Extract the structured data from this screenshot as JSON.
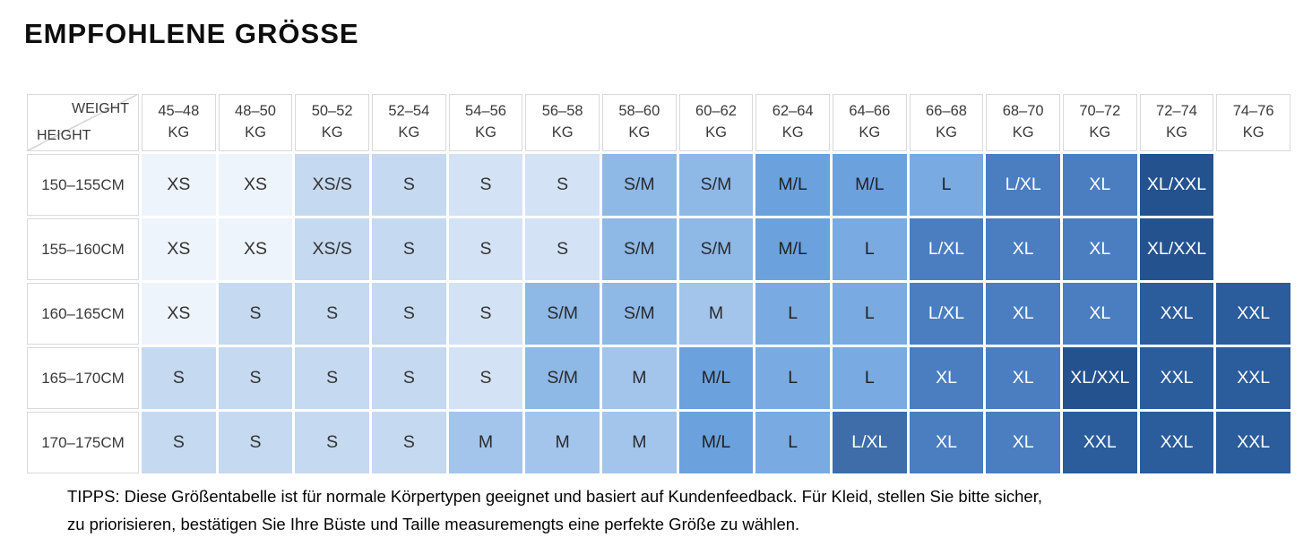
{
  "page": {
    "title": "EMPFOHLENE GRÖSSE",
    "tips": [
      "TIPPS: Diese Größentabelle ist für normale Körpertypen geeignet und basiert auf Kundenfeedback. Für Kleid, stellen Sie bitte sicher,",
      "zu priorisieren, bestätigen Sie Ihre Büste und Taille measuremengts eine perfekte Größe zu wählen."
    ]
  },
  "palette": {
    "empty": {
      "bg": "#ffffff",
      "fg": "#333333"
    },
    "xs": {
      "bg": "#eef4fb",
      "fg": "#333333"
    },
    "s1": {
      "bg": "#c5d9f0",
      "fg": "#333333"
    },
    "s2": {
      "bg": "#d4e2f5",
      "fg": "#333333"
    },
    "sm": {
      "bg": "#8eb8e6",
      "fg": "#2b2b2b"
    },
    "m": {
      "bg": "#a3c4eb",
      "fg": "#2b2b2b"
    },
    "ml": {
      "bg": "#6ba1dd",
      "fg": "#222222"
    },
    "l": {
      "bg": "#79aae1",
      "fg": "#222222"
    },
    "steel": {
      "bg": "#4a7ec1",
      "fg": "#ffffff"
    },
    "steel2": {
      "bg": "#3e6da9",
      "fg": "#ffffff"
    },
    "navy1": {
      "bg": "#24528f",
      "fg": "#ffffff"
    },
    "navy2": {
      "bg": "#2b5c9b",
      "fg": "#ffffff"
    }
  },
  "table": {
    "corner": {
      "top_label": "WEIGHT",
      "bottom_label": "HEIGHT"
    },
    "weight_columns": [
      {
        "range": "45–48",
        "unit": "KG"
      },
      {
        "range": "48–50",
        "unit": "KG"
      },
      {
        "range": "50–52",
        "unit": "KG"
      },
      {
        "range": "52–54",
        "unit": "KG"
      },
      {
        "range": "54–56",
        "unit": "KG"
      },
      {
        "range": "56–58",
        "unit": "KG"
      },
      {
        "range": "58–60",
        "unit": "KG"
      },
      {
        "range": "60–62",
        "unit": "KG"
      },
      {
        "range": "62–64",
        "unit": "KG"
      },
      {
        "range": "64–66",
        "unit": "KG"
      },
      {
        "range": "66–68",
        "unit": "KG"
      },
      {
        "range": "68–70",
        "unit": "KG"
      },
      {
        "range": "70–72",
        "unit": "KG"
      },
      {
        "range": "72–74",
        "unit": "KG"
      },
      {
        "range": "74–76",
        "unit": "KG"
      }
    ],
    "rows": [
      {
        "height": "150–155CM",
        "cells": [
          {
            "label": "XS",
            "color": "xs"
          },
          {
            "label": "XS",
            "color": "xs"
          },
          {
            "label": "XS/S",
            "color": "s1"
          },
          {
            "label": "S",
            "color": "s1"
          },
          {
            "label": "S",
            "color": "s2"
          },
          {
            "label": "S",
            "color": "s2"
          },
          {
            "label": "S/M",
            "color": "sm"
          },
          {
            "label": "S/M",
            "color": "sm"
          },
          {
            "label": "M/L",
            "color": "ml"
          },
          {
            "label": "M/L",
            "color": "ml"
          },
          {
            "label": "L",
            "color": "l"
          },
          {
            "label": "L/XL",
            "color": "steel"
          },
          {
            "label": "XL",
            "color": "steel"
          },
          {
            "label": "XL/XXL",
            "color": "navy1"
          },
          {
            "label": "",
            "color": "empty"
          }
        ]
      },
      {
        "height": "155–160CM",
        "cells": [
          {
            "label": "XS",
            "color": "xs"
          },
          {
            "label": "XS",
            "color": "xs"
          },
          {
            "label": "XS/S",
            "color": "s1"
          },
          {
            "label": "S",
            "color": "s1"
          },
          {
            "label": "S",
            "color": "s2"
          },
          {
            "label": "S",
            "color": "s2"
          },
          {
            "label": "S/M",
            "color": "sm"
          },
          {
            "label": "S/M",
            "color": "sm"
          },
          {
            "label": "M/L",
            "color": "ml"
          },
          {
            "label": "L",
            "color": "l"
          },
          {
            "label": "L/XL",
            "color": "steel"
          },
          {
            "label": "XL",
            "color": "steel"
          },
          {
            "label": "XL",
            "color": "steel"
          },
          {
            "label": "XL/XXL",
            "color": "navy1"
          },
          {
            "label": "",
            "color": "empty"
          }
        ]
      },
      {
        "height": "160–165CM",
        "cells": [
          {
            "label": "XS",
            "color": "xs"
          },
          {
            "label": "S",
            "color": "s1"
          },
          {
            "label": "S",
            "color": "s1"
          },
          {
            "label": "S",
            "color": "s1"
          },
          {
            "label": "S",
            "color": "s2"
          },
          {
            "label": "S/M",
            "color": "sm"
          },
          {
            "label": "S/M",
            "color": "sm"
          },
          {
            "label": "M",
            "color": "m"
          },
          {
            "label": "L",
            "color": "l"
          },
          {
            "label": "L",
            "color": "l"
          },
          {
            "label": "L/XL",
            "color": "steel"
          },
          {
            "label": "XL",
            "color": "steel"
          },
          {
            "label": "XL",
            "color": "steel"
          },
          {
            "label": "XXL",
            "color": "navy2"
          },
          {
            "label": "XXL",
            "color": "navy2"
          }
        ]
      },
      {
        "height": "165–170CM",
        "cells": [
          {
            "label": "S",
            "color": "s1"
          },
          {
            "label": "S",
            "color": "s1"
          },
          {
            "label": "S",
            "color": "s1"
          },
          {
            "label": "S",
            "color": "s1"
          },
          {
            "label": "S",
            "color": "s2"
          },
          {
            "label": "S/M",
            "color": "sm"
          },
          {
            "label": "M",
            "color": "m"
          },
          {
            "label": "M/L",
            "color": "ml"
          },
          {
            "label": "L",
            "color": "l"
          },
          {
            "label": "L",
            "color": "l"
          },
          {
            "label": "XL",
            "color": "steel"
          },
          {
            "label": "XL",
            "color": "steel"
          },
          {
            "label": "XL/XXL",
            "color": "navy1"
          },
          {
            "label": "XXL",
            "color": "navy2"
          },
          {
            "label": "XXL",
            "color": "navy2"
          }
        ]
      },
      {
        "height": "170–175CM",
        "cells": [
          {
            "label": "S",
            "color": "s1"
          },
          {
            "label": "S",
            "color": "s1"
          },
          {
            "label": "S",
            "color": "s1"
          },
          {
            "label": "S",
            "color": "s1"
          },
          {
            "label": "M",
            "color": "m"
          },
          {
            "label": "M",
            "color": "m"
          },
          {
            "label": "M",
            "color": "m"
          },
          {
            "label": "M/L",
            "color": "ml"
          },
          {
            "label": "L",
            "color": "l"
          },
          {
            "label": "L/XL",
            "color": "steel2"
          },
          {
            "label": "XL",
            "color": "steel"
          },
          {
            "label": "XL",
            "color": "steel"
          },
          {
            "label": "XXL",
            "color": "navy2"
          },
          {
            "label": "XXL",
            "color": "navy2"
          },
          {
            "label": "XXL",
            "color": "navy2"
          }
        ]
      }
    ]
  }
}
